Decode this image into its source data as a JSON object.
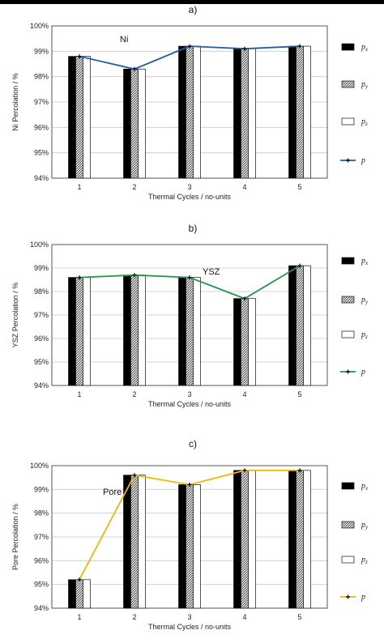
{
  "chart_data": [
    {
      "type": "bar",
      "panel_label": "a)",
      "annotation": "Ni",
      "xlabel": "Thermal Cycles / no-units",
      "ylabel": "Ni Percolation / %",
      "categories": [
        "1",
        "2",
        "3",
        "4",
        "5"
      ],
      "ylim": [
        94,
        100
      ],
      "yticks": [
        "94%",
        "95%",
        "96%",
        "97%",
        "98%",
        "99%",
        "100%"
      ],
      "series": [
        {
          "name": "p_x",
          "values": [
            98.8,
            98.3,
            99.2,
            99.1,
            99.2
          ]
        },
        {
          "name": "p_y",
          "values": [
            98.8,
            98.3,
            99.2,
            99.1,
            99.2
          ]
        },
        {
          "name": "p_z",
          "values": [
            98.8,
            98.3,
            99.2,
            99.1,
            99.2
          ]
        },
        {
          "name": "p",
          "type": "line",
          "values": [
            98.8,
            98.3,
            99.2,
            99.1,
            99.2
          ]
        }
      ],
      "line_color": "#1f5fa8",
      "legend_position": "right"
    },
    {
      "type": "bar",
      "panel_label": "b)",
      "annotation": "YSZ",
      "xlabel": "Thermal Cycles / no-units",
      "ylabel": "YSZ Percolation / %",
      "categories": [
        "1",
        "2",
        "3",
        "4",
        "5"
      ],
      "ylim": [
        94,
        100
      ],
      "yticks": [
        "94%",
        "95%",
        "96%",
        "97%",
        "98%",
        "99%",
        "100%"
      ],
      "series": [
        {
          "name": "p_x",
          "values": [
            98.6,
            98.7,
            98.6,
            97.7,
            99.1
          ]
        },
        {
          "name": "p_y",
          "values": [
            98.6,
            98.7,
            98.6,
            97.7,
            99.1
          ]
        },
        {
          "name": "p_z",
          "values": [
            98.6,
            98.7,
            98.6,
            97.7,
            99.1
          ]
        },
        {
          "name": "p",
          "type": "line",
          "values": [
            98.6,
            98.7,
            98.6,
            97.7,
            99.1
          ]
        }
      ],
      "line_color": "#1f9a4a",
      "legend_position": "right"
    },
    {
      "type": "bar",
      "panel_label": "c)",
      "annotation": "Pore",
      "xlabel": "Thermal Cycles / no-units",
      "ylabel": "Pore Percolation / %",
      "categories": [
        "1",
        "2",
        "3",
        "4",
        "5"
      ],
      "ylim": [
        94,
        100
      ],
      "yticks": [
        "94%",
        "95%",
        "96%",
        "97%",
        "98%",
        "99%",
        "100%"
      ],
      "series": [
        {
          "name": "p_x",
          "values": [
            95.2,
            99.6,
            99.2,
            99.8,
            99.8
          ]
        },
        {
          "name": "p_y",
          "values": [
            95.2,
            99.6,
            99.2,
            99.8,
            99.8
          ]
        },
        {
          "name": "p_z",
          "values": [
            95.2,
            99.6,
            99.2,
            99.8,
            99.8
          ]
        },
        {
          "name": "p",
          "type": "line",
          "values": [
            95.2,
            99.6,
            99.2,
            99.8,
            99.8
          ]
        }
      ],
      "line_color": "#f2b705",
      "legend_position": "right"
    }
  ]
}
